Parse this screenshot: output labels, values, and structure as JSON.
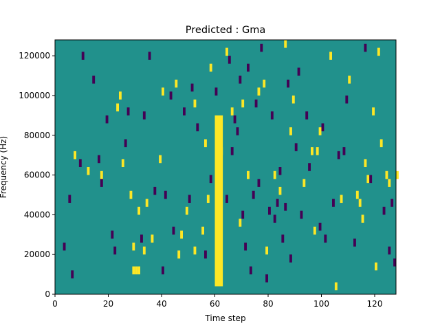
{
  "chart_data": {
    "type": "heatmap",
    "title": "Predicted : Gma",
    "xlabel": "Time step",
    "ylabel": "Frequency (Hz)",
    "xlim": [
      0,
      128
    ],
    "ylim": [
      0,
      128000
    ],
    "x_ticks": [
      0,
      20,
      40,
      60,
      80,
      100,
      120
    ],
    "y_ticks": [
      0,
      20000,
      40000,
      60000,
      80000,
      100000,
      120000
    ],
    "x_tick_labels": [
      "0",
      "20",
      "40",
      "60",
      "80",
      "100",
      "120"
    ],
    "y_tick_labels": [
      "0",
      "20000",
      "40000",
      "60000",
      "80000",
      "100000",
      "120000"
    ],
    "grid": false,
    "colormap": "viridis",
    "colors": {
      "background": "#21918c",
      "high": "#fde725",
      "low": "#440154"
    },
    "n_time_steps": 128,
    "n_freq_bins": 128,
    "dominant_band": {
      "x_range": [
        60,
        63
      ],
      "freq_range": [
        4000,
        90000
      ],
      "state": "high"
    },
    "high_cells": [
      [
        30,
        10000
      ],
      [
        31,
        10000
      ],
      [
        29,
        10000
      ],
      [
        29,
        22000
      ],
      [
        33,
        20000
      ],
      [
        46,
        18000
      ],
      [
        52,
        20000
      ],
      [
        55,
        30000
      ],
      [
        57,
        46000
      ],
      [
        62,
        70000
      ],
      [
        64,
        120000
      ],
      [
        69,
        34000
      ],
      [
        79,
        20000
      ],
      [
        84,
        50000
      ],
      [
        88,
        80000
      ],
      [
        97,
        30000
      ],
      [
        98,
        70000
      ],
      [
        99,
        80000
      ],
      [
        103,
        118000
      ],
      [
        113,
        48000
      ],
      [
        114,
        44000
      ],
      [
        115,
        36000
      ],
      [
        116,
        64000
      ],
      [
        117,
        56000
      ],
      [
        120,
        12000
      ],
      [
        124,
        58000
      ],
      [
        125,
        54000
      ],
      [
        128,
        58000
      ],
      [
        7,
        68000
      ],
      [
        12,
        60000
      ],
      [
        17,
        58000
      ],
      [
        23,
        92000
      ],
      [
        24,
        98000
      ],
      [
        25,
        64000
      ],
      [
        28,
        48000
      ],
      [
        31,
        40000
      ],
      [
        34,
        44000
      ],
      [
        36,
        26000
      ],
      [
        39,
        66000
      ],
      [
        40,
        100000
      ],
      [
        45,
        104000
      ],
      [
        47,
        28000
      ],
      [
        49,
        40000
      ],
      [
        52,
        94000
      ],
      [
        56,
        74000
      ],
      [
        58,
        112000
      ],
      [
        66,
        90000
      ],
      [
        70,
        94000
      ],
      [
        72,
        58000
      ],
      [
        76,
        100000
      ],
      [
        78,
        104000
      ],
      [
        82,
        58000
      ],
      [
        86,
        124000
      ],
      [
        89,
        96000
      ],
      [
        93,
        54000
      ],
      [
        96,
        70000
      ],
      [
        105,
        2000
      ],
      [
        107,
        46000
      ],
      [
        110,
        106000
      ],
      [
        119,
        90000
      ],
      [
        121,
        120000
      ],
      [
        122,
        74000
      ]
    ],
    "low_cells": [
      [
        6,
        8000
      ],
      [
        9,
        64000
      ],
      [
        16,
        66000
      ],
      [
        17,
        54000
      ],
      [
        22,
        20000
      ],
      [
        27,
        90000
      ],
      [
        32,
        26000
      ],
      [
        37,
        50000
      ],
      [
        40,
        10000
      ],
      [
        41,
        48000
      ],
      [
        44,
        30000
      ],
      [
        50,
        46000
      ],
      [
        56,
        18000
      ],
      [
        58,
        56000
      ],
      [
        64,
        46000
      ],
      [
        66,
        70000
      ],
      [
        67,
        86000
      ],
      [
        68,
        80000
      ],
      [
        70,
        38000
      ],
      [
        71,
        22000
      ],
      [
        73,
        10000
      ],
      [
        74,
        48000
      ],
      [
        76,
        54000
      ],
      [
        79,
        6000
      ],
      [
        80,
        40000
      ],
      [
        82,
        36000
      ],
      [
        83,
        44000
      ],
      [
        84,
        60000
      ],
      [
        85,
        26000
      ],
      [
        86,
        42000
      ],
      [
        88,
        16000
      ],
      [
        90,
        72000
      ],
      [
        92,
        38000
      ],
      [
        95,
        62000
      ],
      [
        99,
        32000
      ],
      [
        101,
        26000
      ],
      [
        104,
        44000
      ],
      [
        106,
        68000
      ],
      [
        108,
        70000
      ],
      [
        112,
        24000
      ],
      [
        118,
        56000
      ],
      [
        123,
        40000
      ],
      [
        125,
        20000
      ],
      [
        126,
        44000
      ],
      [
        127,
        14000
      ],
      [
        3,
        22000
      ],
      [
        5,
        46000
      ],
      [
        10,
        118000
      ],
      [
        14,
        106000
      ],
      [
        19,
        86000
      ],
      [
        21,
        28000
      ],
      [
        26,
        74000
      ],
      [
        33,
        88000
      ],
      [
        35,
        118000
      ],
      [
        43,
        98000
      ],
      [
        48,
        90000
      ],
      [
        51,
        102000
      ],
      [
        53,
        82000
      ],
      [
        60,
        100000
      ],
      [
        65,
        116000
      ],
      [
        69,
        106000
      ],
      [
        72,
        112000
      ],
      [
        75,
        94000
      ],
      [
        77,
        122000
      ],
      [
        81,
        88000
      ],
      [
        87,
        104000
      ],
      [
        91,
        110000
      ],
      [
        94,
        88000
      ],
      [
        100,
        82000
      ],
      [
        109,
        96000
      ],
      [
        116,
        122000
      ]
    ]
  }
}
